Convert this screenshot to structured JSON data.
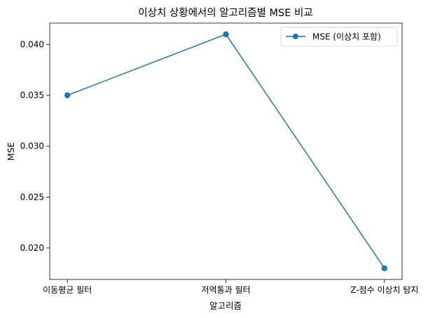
{
  "chart_data": {
    "type": "line",
    "title": "이상치 상황에서의 알고리즘별 MSE 비교",
    "xlabel": "알고리즘",
    "ylabel": "MSE",
    "categories": [
      "이동평균 필터",
      "저역통과 필터",
      "Z-점수 이상치 탐지"
    ],
    "series": [
      {
        "name": "MSE (이상치 포함)",
        "values": [
          0.035,
          0.041,
          0.018
        ],
        "color": "#1f77b4",
        "marker": "circle"
      }
    ],
    "ylim": [
      0.0169,
      0.0421
    ],
    "yticks": [
      "0.020",
      "0.025",
      "0.030",
      "0.035",
      "0.040"
    ],
    "grid": false,
    "legend_position": "top-right"
  }
}
